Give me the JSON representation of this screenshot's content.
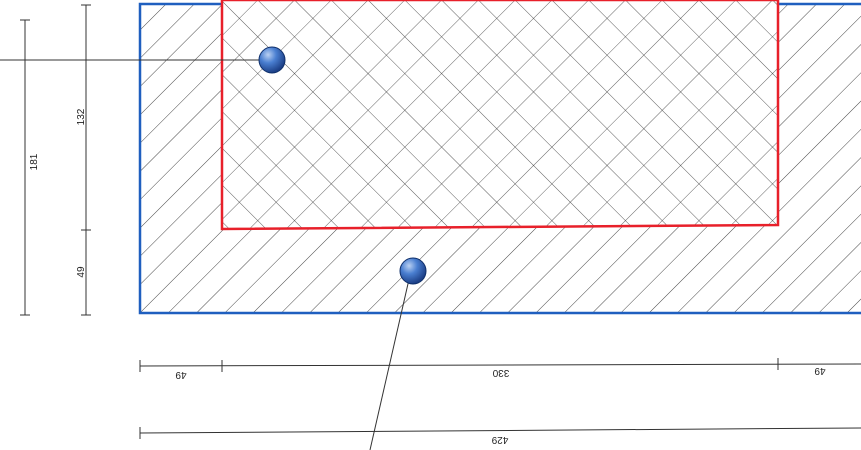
{
  "colors": {
    "outer_border": "#1f5fbf",
    "inner_border": "#e8202a",
    "marker_fill": "#3d6fc4",
    "marker_stroke": "#0f2f6a",
    "line": "#333333",
    "hatch": "#333333"
  },
  "dimensions": {
    "vertical_total": "181",
    "vertical_upper": "132",
    "vertical_lower": "49",
    "horizontal_left": "49",
    "horizontal_middle": "330",
    "horizontal_right": "49",
    "horizontal_total": "429"
  }
}
